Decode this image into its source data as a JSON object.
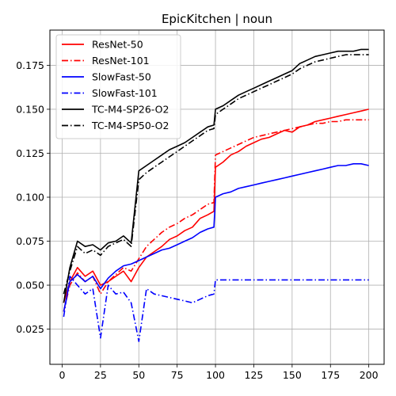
{
  "chart_data": {
    "type": "line",
    "title": "EpicKitchen | noun",
    "xlabel": "",
    "ylabel": "",
    "xlim": [
      -8,
      210
    ],
    "ylim": [
      0.005,
      0.195
    ],
    "xticks": [
      0,
      25,
      50,
      75,
      100,
      125,
      150,
      175,
      200
    ],
    "yticks": [
      0.025,
      0.05,
      0.075,
      0.1,
      0.125,
      0.15,
      0.175
    ],
    "ytick_labels": [
      "0.025",
      "0.050",
      "0.075",
      "0.100",
      "0.125",
      "0.150",
      "0.175"
    ],
    "grid": true,
    "legend_position": "top-left",
    "series": [
      {
        "name": "ResNet-50",
        "color": "#ff0000",
        "dash": "solid",
        "x": [
          1,
          5,
          10,
          15,
          20,
          25,
          30,
          35,
          40,
          45,
          50,
          55,
          60,
          65,
          70,
          75,
          80,
          85,
          90,
          95,
          99,
          100,
          105,
          110,
          115,
          120,
          125,
          130,
          135,
          140,
          145,
          150,
          155,
          160,
          165,
          170,
          175,
          180,
          185,
          190,
          195,
          200
        ],
        "y": [
          0.04,
          0.052,
          0.06,
          0.055,
          0.058,
          0.05,
          0.052,
          0.055,
          0.058,
          0.052,
          0.06,
          0.066,
          0.069,
          0.072,
          0.076,
          0.078,
          0.081,
          0.083,
          0.088,
          0.09,
          0.092,
          0.117,
          0.12,
          0.124,
          0.126,
          0.129,
          0.131,
          0.133,
          0.134,
          0.136,
          0.138,
          0.137,
          0.14,
          0.141,
          0.143,
          0.144,
          0.145,
          0.146,
          0.147,
          0.148,
          0.149,
          0.15
        ]
      },
      {
        "name": "ResNet-101",
        "color": "#ff0000",
        "dash": "dashdot",
        "x": [
          1,
          5,
          10,
          15,
          20,
          25,
          30,
          35,
          40,
          45,
          50,
          55,
          60,
          65,
          70,
          75,
          80,
          85,
          90,
          95,
          99,
          100,
          105,
          110,
          115,
          120,
          125,
          130,
          135,
          140,
          145,
          150,
          155,
          160,
          165,
          170,
          175,
          180,
          185,
          190,
          195,
          200
        ],
        "y": [
          0.035,
          0.05,
          0.057,
          0.052,
          0.055,
          0.045,
          0.052,
          0.056,
          0.06,
          0.058,
          0.065,
          0.072,
          0.076,
          0.08,
          0.083,
          0.085,
          0.088,
          0.09,
          0.093,
          0.096,
          0.097,
          0.124,
          0.126,
          0.128,
          0.13,
          0.132,
          0.134,
          0.135,
          0.136,
          0.137,
          0.138,
          0.139,
          0.14,
          0.141,
          0.142,
          0.142,
          0.143,
          0.143,
          0.144,
          0.144,
          0.144,
          0.144
        ]
      },
      {
        "name": "SlowFast-50",
        "color": "#0000ff",
        "dash": "solid",
        "x": [
          1,
          5,
          10,
          15,
          20,
          25,
          30,
          35,
          40,
          45,
          50,
          55,
          60,
          65,
          70,
          75,
          80,
          85,
          90,
          95,
          99,
          100,
          105,
          110,
          115,
          120,
          125,
          130,
          135,
          140,
          145,
          150,
          155,
          160,
          165,
          170,
          175,
          180,
          185,
          190,
          195,
          200
        ],
        "y": [
          0.035,
          0.052,
          0.056,
          0.052,
          0.055,
          0.048,
          0.054,
          0.058,
          0.061,
          0.062,
          0.064,
          0.066,
          0.068,
          0.07,
          0.071,
          0.073,
          0.075,
          0.077,
          0.08,
          0.082,
          0.083,
          0.1,
          0.102,
          0.103,
          0.105,
          0.106,
          0.107,
          0.108,
          0.109,
          0.11,
          0.111,
          0.112,
          0.113,
          0.114,
          0.115,
          0.116,
          0.117,
          0.118,
          0.118,
          0.119,
          0.119,
          0.118
        ]
      },
      {
        "name": "SlowFast-101",
        "color": "#0000ff",
        "dash": "dashdot",
        "x": [
          1,
          5,
          10,
          15,
          20,
          25,
          30,
          35,
          40,
          45,
          50,
          55,
          60,
          65,
          70,
          75,
          80,
          85,
          90,
          95,
          99,
          100,
          125,
          150,
          175,
          200
        ],
        "y": [
          0.032,
          0.055,
          0.05,
          0.045,
          0.048,
          0.02,
          0.05,
          0.045,
          0.046,
          0.04,
          0.018,
          0.048,
          0.045,
          0.044,
          0.043,
          0.042,
          0.041,
          0.04,
          0.042,
          0.044,
          0.045,
          0.053,
          0.053,
          0.053,
          0.053,
          0.053
        ]
      },
      {
        "name": "TC-M4-SP26-O2",
        "color": "#000000",
        "dash": "solid",
        "x": [
          1,
          5,
          10,
          15,
          20,
          25,
          30,
          35,
          40,
          45,
          50,
          55,
          60,
          65,
          70,
          75,
          80,
          85,
          90,
          95,
          99,
          100,
          105,
          110,
          115,
          120,
          125,
          130,
          135,
          140,
          145,
          150,
          155,
          160,
          165,
          170,
          175,
          180,
          185,
          190,
          195,
          200
        ],
        "y": [
          0.04,
          0.06,
          0.075,
          0.072,
          0.073,
          0.07,
          0.074,
          0.075,
          0.078,
          0.074,
          0.115,
          0.118,
          0.121,
          0.124,
          0.127,
          0.129,
          0.131,
          0.134,
          0.137,
          0.14,
          0.141,
          0.15,
          0.152,
          0.155,
          0.158,
          0.16,
          0.162,
          0.164,
          0.166,
          0.168,
          0.17,
          0.172,
          0.176,
          0.178,
          0.18,
          0.181,
          0.182,
          0.183,
          0.183,
          0.183,
          0.184,
          0.184
        ]
      },
      {
        "name": "TC-M4-SP50-O2",
        "color": "#000000",
        "dash": "dashdot",
        "x": [
          1,
          5,
          10,
          15,
          20,
          25,
          30,
          35,
          40,
          45,
          50,
          55,
          60,
          65,
          70,
          75,
          80,
          85,
          90,
          95,
          99,
          100,
          105,
          110,
          115,
          120,
          125,
          130,
          135,
          140,
          145,
          150,
          155,
          160,
          165,
          170,
          175,
          180,
          185,
          190,
          195,
          200
        ],
        "y": [
          0.045,
          0.058,
          0.072,
          0.068,
          0.07,
          0.067,
          0.072,
          0.074,
          0.076,
          0.072,
          0.11,
          0.114,
          0.117,
          0.12,
          0.123,
          0.126,
          0.129,
          0.132,
          0.135,
          0.138,
          0.139,
          0.147,
          0.15,
          0.153,
          0.156,
          0.158,
          0.16,
          0.162,
          0.164,
          0.166,
          0.168,
          0.17,
          0.173,
          0.175,
          0.177,
          0.178,
          0.179,
          0.18,
          0.181,
          0.181,
          0.181,
          0.181
        ]
      }
    ]
  }
}
